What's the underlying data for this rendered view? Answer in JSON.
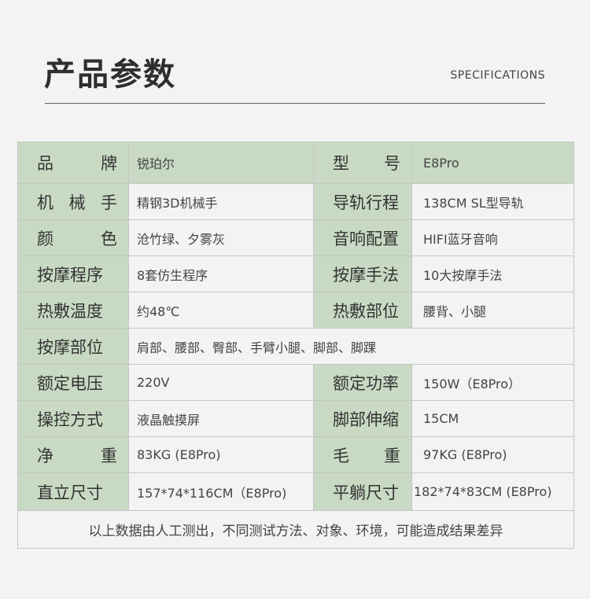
{
  "header": {
    "title": "产品参数",
    "subtitle": "SPECIFICATIONS"
  },
  "specs": [
    {
      "l1": [
        "品",
        "牌"
      ],
      "v1": "锐珀尔",
      "l2": [
        "型",
        "号"
      ],
      "v2": "E8Pro"
    },
    {
      "l1": [
        "机",
        "械",
        "手"
      ],
      "v1": "精钢3D机械手",
      "l2": [
        "导轨行程"
      ],
      "v2": "138CM SL型导轨"
    },
    {
      "l1": [
        "颜",
        "色"
      ],
      "v1": "沧竹绿、夕雾灰",
      "l2": [
        "音响配置"
      ],
      "v2": "HIFI蓝牙音响"
    },
    {
      "l1": [
        "按摩程序"
      ],
      "v1": "8套仿生程序",
      "l2": [
        "按摩手法"
      ],
      "v2": "10大按摩手法"
    },
    {
      "l1": [
        "热敷温度"
      ],
      "v1": "约48℃",
      "l2": [
        "热敷部位"
      ],
      "v2": "腰背、小腿"
    },
    {
      "l1": [
        "按摩部位"
      ],
      "v1": "肩部、腰部、臀部、手臂小腿、脚部、脚踝"
    },
    {
      "l1": [
        "额定电压"
      ],
      "v1": "220V",
      "l2": [
        "额定功率"
      ],
      "v2": "150W（E8Pro）"
    },
    {
      "l1": [
        "操控方式"
      ],
      "v1": "液晶触摸屏",
      "l2": [
        "脚部伸缩"
      ],
      "v2": "15CM"
    },
    {
      "l1": [
        "净",
        "重"
      ],
      "v1": "83KG (E8Pro)",
      "l2": [
        "毛",
        "重"
      ],
      "v2": "97KG (E8Pro)"
    },
    {
      "l1": [
        "直立尺寸"
      ],
      "v1": "157*74*116CM（E8Pro)",
      "l2": [
        "平躺尺寸"
      ],
      "v2": "182*74*83CM (E8Pro)"
    }
  ],
  "note": "以上数据由人工测出，不同测试方法、对象、环境，可能造成结果差异",
  "colors": {
    "label_bg": "#c8dac3",
    "value_bg": "#f3f3f3",
    "border": "#c6c6c6"
  }
}
